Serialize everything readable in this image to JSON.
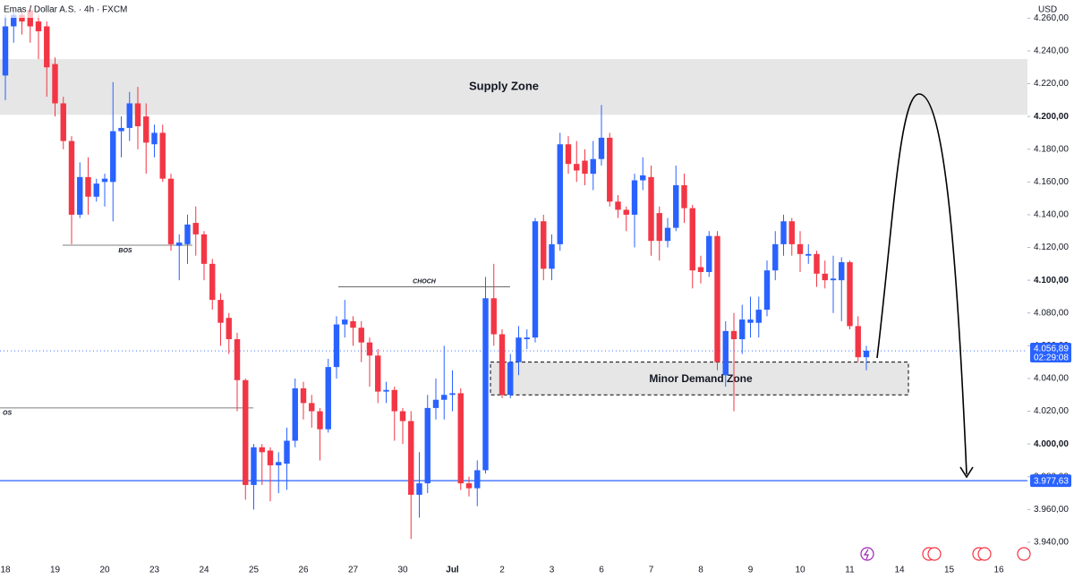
{
  "chart_data": {
    "type": "candlestick",
    "title": "Emas / Dollar A.S. · 4h · FXCM",
    "currency": "USD",
    "categories": [
      "18",
      null,
      null,
      null,
      null,
      null,
      "19",
      null,
      null,
      null,
      null,
      null,
      "20",
      null,
      null,
      null,
      null,
      null,
      "23",
      null,
      null,
      null,
      null,
      null,
      "24",
      null,
      null,
      null,
      null,
      null,
      "25",
      null,
      null,
      null,
      null,
      null,
      "26",
      null,
      null,
      null,
      null,
      null,
      "27",
      null,
      null,
      null,
      null,
      null,
      "30",
      null,
      null,
      null,
      null,
      null,
      "Jul",
      null,
      null,
      null,
      null,
      null,
      "2",
      null,
      null,
      null,
      null,
      null,
      "3",
      null,
      null,
      null,
      null,
      null,
      "6",
      null,
      null,
      null,
      null,
      null,
      "7",
      null,
      null,
      null,
      null,
      null,
      "8",
      null,
      null,
      null,
      null,
      null,
      "9",
      null,
      null,
      null,
      null,
      null,
      "10",
      null,
      null,
      null,
      null,
      null,
      "11",
      null,
      null,
      null,
      null,
      null,
      "14",
      null,
      null,
      null,
      null,
      null,
      "15",
      null,
      null,
      null,
      null,
      null,
      "16"
    ],
    "open": [
      4225,
      4255,
      4262,
      4265,
      4258,
      4255,
      4232,
      4208,
      4185,
      4140,
      4163,
      4151,
      4160,
      4160,
      4191,
      4193,
      4208,
      4200,
      4183,
      4190,
      4162,
      4121,
      4122,
      4135,
      4128,
      4110,
      4088,
      4077,
      4064,
      4039,
      3975,
      3998,
      3996,
      3987,
      3988,
      4002,
      4034,
      4025,
      4020,
      4009,
      4047,
      4073,
      4075,
      4071,
      4062,
      4054,
      4032,
      4033,
      4020,
      4014,
      3969,
      3976,
      4022,
      4027,
      4030,
      4031,
      3976,
      3973,
      3984,
      4089,
      4067,
      4030,
      4050,
      4064,
      4065,
      4136,
      4107,
      4122,
      4183,
      4171,
      4173,
      4165,
      4174,
      4187,
      4148,
      4143,
      4140,
      4161,
      4163,
      4141,
      4124,
      4132,
      4158,
      4144,
      4108,
      4105,
      4127,
      4042,
      4069,
      4064,
      4074,
      4074,
      4082,
      4106,
      4122,
      4136,
      4122,
      4115,
      4116,
      4104,
      4100,
      4100,
      4111,
      4072,
      4053,
      null,
      null,
      null,
      null,
      null,
      null,
      null,
      null,
      null,
      null,
      null,
      null,
      null,
      null,
      null,
      null
    ],
    "high": [
      4262,
      4265,
      4265,
      4268,
      4262,
      4258,
      4236,
      4212,
      4188,
      4172,
      4175,
      4162,
      4165,
      4221,
      4200,
      4215,
      4218,
      4208,
      4195,
      4195,
      4165,
      4128,
      4140,
      4145,
      4130,
      4113,
      4092,
      4080,
      4068,
      4040,
      4000,
      4000,
      3998,
      3995,
      4010,
      4040,
      4038,
      4030,
      4022,
      4052,
      4078,
      4088,
      4078,
      4075,
      4065,
      4058,
      4038,
      4035,
      4022,
      4020,
      3995,
      4030,
      4040,
      4060,
      4045,
      4034,
      3980,
      3990,
      4102,
      4110,
      4070,
      4055,
      4072,
      4070,
      4138,
      4140,
      4128,
      4190,
      4188,
      4185,
      4180,
      4185,
      4207,
      4190,
      4152,
      4145,
      4165,
      4175,
      4170,
      4145,
      4138,
      4170,
      4165,
      4146,
      4115,
      4130,
      4130,
      4075,
      4080,
      4085,
      4090,
      4090,
      4112,
      4130,
      4140,
      4138,
      4130,
      4122,
      4118,
      4112,
      4115,
      4114,
      4112,
      4078,
      4060,
      null,
      null,
      null,
      null,
      null,
      null,
      null,
      null,
      null,
      null,
      null,
      null,
      null,
      null,
      null,
      null
    ],
    "low": [
      4210,
      4245,
      4250,
      4245,
      4235,
      4212,
      4200,
      4180,
      4122,
      4138,
      4140,
      4148,
      4145,
      4136,
      4175,
      4185,
      4180,
      4165,
      4175,
      4160,
      4118,
      4100,
      4110,
      4115,
      4100,
      4082,
      4060,
      4055,
      4020,
      3966,
      3960,
      3975,
      3965,
      3970,
      3972,
      3998,
      4015,
      4010,
      3990,
      4007,
      4040,
      4065,
      4060,
      4050,
      4035,
      4025,
      4025,
      4002,
      4000,
      3942,
      3955,
      3970,
      4015,
      4015,
      4020,
      3972,
      3968,
      3962,
      3982,
      4060,
      4028,
      4028,
      4042,
      4058,
      4062,
      4100,
      4100,
      4118,
      4165,
      4160,
      4158,
      4155,
      4170,
      4145,
      4138,
      4130,
      4120,
      4155,
      4115,
      4112,
      4120,
      4130,
      4135,
      4095,
      4098,
      4102,
      4045,
      4035,
      4020,
      4055,
      4065,
      4065,
      4078,
      4100,
      4115,
      4115,
      4105,
      4110,
      4096,
      4095,
      4080,
      4075,
      4070,
      4050,
      4045,
      null,
      null,
      null,
      null,
      null,
      null,
      null,
      null,
      null,
      null,
      null,
      null,
      null,
      null,
      null,
      null
    ],
    "close": [
      4255,
      4262,
      4258,
      4255,
      4252,
      4230,
      4208,
      4185,
      4140,
      4163,
      4151,
      4159,
      4162,
      4191,
      4193,
      4208,
      4194,
      4184,
      4190,
      4162,
      4122,
      4123,
      4134,
      4128,
      4110,
      4088,
      4074,
      4064,
      4039,
      3975,
      3998,
      3995,
      3987,
      3989,
      4002,
      4034,
      4025,
      4020,
      4009,
      4047,
      4073,
      4076,
      4071,
      4062,
      4054,
      4032,
      4033,
      4020,
      4014,
      3969,
      3976,
      4022,
      4027,
      4030,
      4031,
      3976,
      3973,
      3984,
      4089,
      4067,
      4030,
      4050,
      4065,
      4065,
      4136,
      4107,
      4122,
      4183,
      4171,
      4167,
      4165,
      4174,
      4187,
      4148,
      4143,
      4140,
      4161,
      4164,
      4124,
      4124,
      4132,
      4158,
      4144,
      4106,
      4105,
      4127,
      4050,
      4069,
      4064,
      4076,
      4076,
      4082,
      4106,
      4122,
      4136,
      4122,
      4116,
      4116,
      4104,
      4100,
      4101,
      4111,
      4072,
      4053,
      4057,
      null,
      null,
      null,
      null,
      null,
      null,
      null,
      null,
      null,
      null,
      null,
      null,
      null,
      null,
      null,
      null
    ],
    "up_color": "#2962ff",
    "down_color": "#f23645",
    "ylim": [
      3929.6,
      4271.1
    ],
    "yticks": [
      {
        "value": 3940,
        "label": "3.940,00"
      },
      {
        "value": 3960,
        "label": "3.960,00"
      },
      {
        "value": 3980,
        "label": "3.980,00"
      },
      {
        "value": 4000,
        "label": "4.000,00"
      },
      {
        "value": 4020,
        "label": "4.020,00"
      },
      {
        "value": 4040,
        "label": "4.040,00"
      },
      {
        "value": 4060,
        "label": "4.060,00"
      },
      {
        "value": 4080,
        "label": "4.080,00"
      },
      {
        "value": 4100,
        "label": "4.100,00"
      },
      {
        "value": 4120,
        "label": "4.120,00"
      },
      {
        "value": 4140,
        "label": "4.140,00"
      },
      {
        "value": 4160,
        "label": "4.160,00"
      },
      {
        "value": 4180,
        "label": "4.180,00"
      },
      {
        "value": 4200,
        "label": "4.200,00"
      },
      {
        "value": 4220,
        "label": "4.220,00"
      },
      {
        "value": 4240,
        "label": "4.240,00"
      },
      {
        "value": 4260,
        "label": "4.260,00"
      }
    ],
    "annotations": {
      "supply_zone": {
        "label": "Supply Zone",
        "range": [
          4201,
          4235
        ]
      },
      "demand_zone": {
        "label": "Minor Demand Zone",
        "range": [
          4030,
          4050
        ]
      },
      "levels": [
        {
          "label": "BOS",
          "value": 4121.4
        },
        {
          "label": "OS",
          "value": 4022
        },
        {
          "label": "CHOCH",
          "value": 4096
        }
      ]
    },
    "last_price": {
      "value": 4056.89,
      "label": "4.056,89",
      "countdown": "02:29:08"
    },
    "target": {
      "value": 3977.63,
      "label": "3.977,63"
    }
  }
}
